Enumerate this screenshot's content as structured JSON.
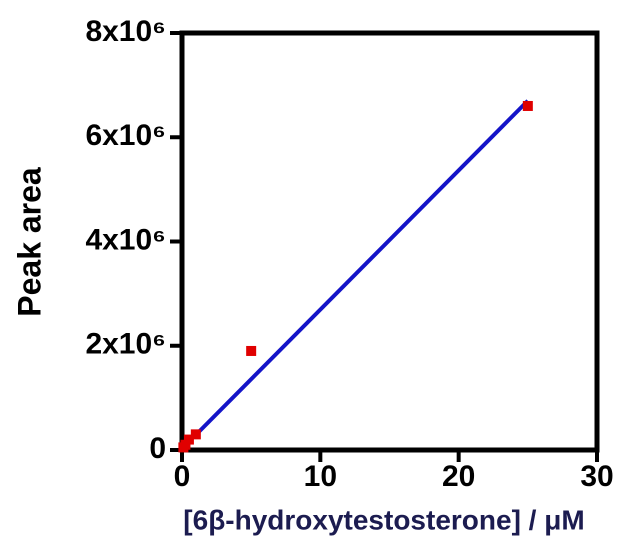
{
  "chart_data": {
    "type": "scatter",
    "x_label": "[6β-hydroxytestosterone] / μM",
    "y_label": "Peak area",
    "xlim": [
      0,
      30
    ],
    "xticks": [
      0,
      10,
      20,
      30
    ],
    "ylim": [
      0,
      8000000
    ],
    "yticks": [
      0,
      {
        "value": 2000000,
        "label": "2x10⁶"
      },
      {
        "value": 4000000,
        "label": "4x10⁶"
      },
      {
        "value": 6000000,
        "label": "6x10⁶"
      },
      {
        "value": 8000000,
        "label": "8x10⁶"
      }
    ],
    "points": {
      "color": "#e00000",
      "x": [
        0.1,
        0.25,
        0.5,
        1,
        5,
        25
      ],
      "values": [
        50000,
        100000,
        200000,
        300000,
        1900000,
        6600000
      ]
    },
    "fit_line": {
      "color": "#1414c8",
      "x": [
        1,
        25
      ],
      "values": [
        290000,
        6700000
      ]
    }
  }
}
